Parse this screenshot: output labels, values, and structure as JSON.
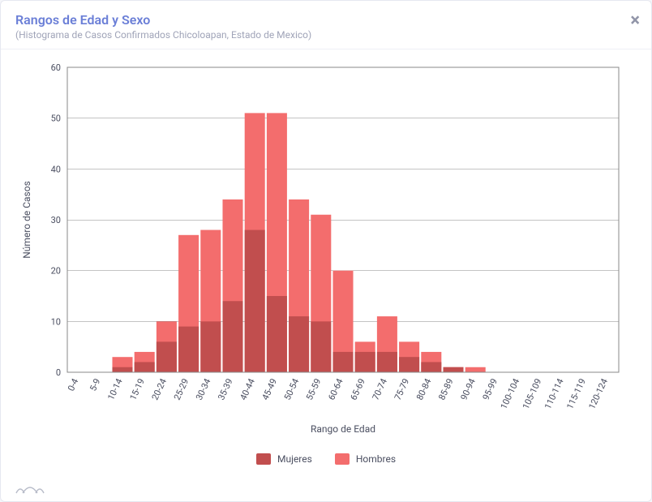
{
  "header": {
    "title": "Rangos de Edad y Sexo",
    "subtitle": "(Histograma de Casos Confirmados Chicoloapan, Estado de Mexico)",
    "close_label": "×"
  },
  "chart": {
    "type": "bar",
    "xlabel": "Rango de Edad",
    "ylabel": "Número de Casos",
    "ylim": [
      0,
      60
    ],
    "ytick_step": 10,
    "label_fontsize": 12,
    "tick_fontsize": 11,
    "background_color": "#ffffff",
    "grid_color": "#888888",
    "plot_border_color": "#888888",
    "categories": [
      "0-4",
      "5-9",
      "10-14",
      "15-19",
      "20-24",
      "25-29",
      "30-34",
      "35-39",
      "40-44",
      "45-49",
      "50-54",
      "55-59",
      "60-64",
      "65-69",
      "70-74",
      "75-79",
      "80-84",
      "85-89",
      "90-94",
      "95-99",
      "100-104",
      "105-109",
      "110-114",
      "115-119",
      "120-124"
    ],
    "series": [
      {
        "name": "Hombres",
        "color": "#f36d6d",
        "values": [
          0,
          0,
          3,
          4,
          10,
          27,
          28,
          34,
          51,
          51,
          34,
          31,
          20,
          6,
          11,
          6,
          4,
          1,
          1,
          0,
          0,
          0,
          0,
          0,
          0
        ]
      },
      {
        "name": "Mujeres",
        "color": "#c14e4e",
        "values": [
          0,
          0,
          1,
          2,
          6,
          9,
          10,
          14,
          28,
          15,
          11,
          10,
          4,
          4,
          4,
          3,
          2,
          1,
          0,
          0,
          0,
          0,
          0,
          0,
          0
        ]
      }
    ],
    "bar_gap_ratio": 0.08
  },
  "legend": {
    "items": [
      {
        "label": "Mujeres",
        "color": "#c14e4e"
      },
      {
        "label": "Hombres",
        "color": "#f36d6d"
      }
    ]
  }
}
